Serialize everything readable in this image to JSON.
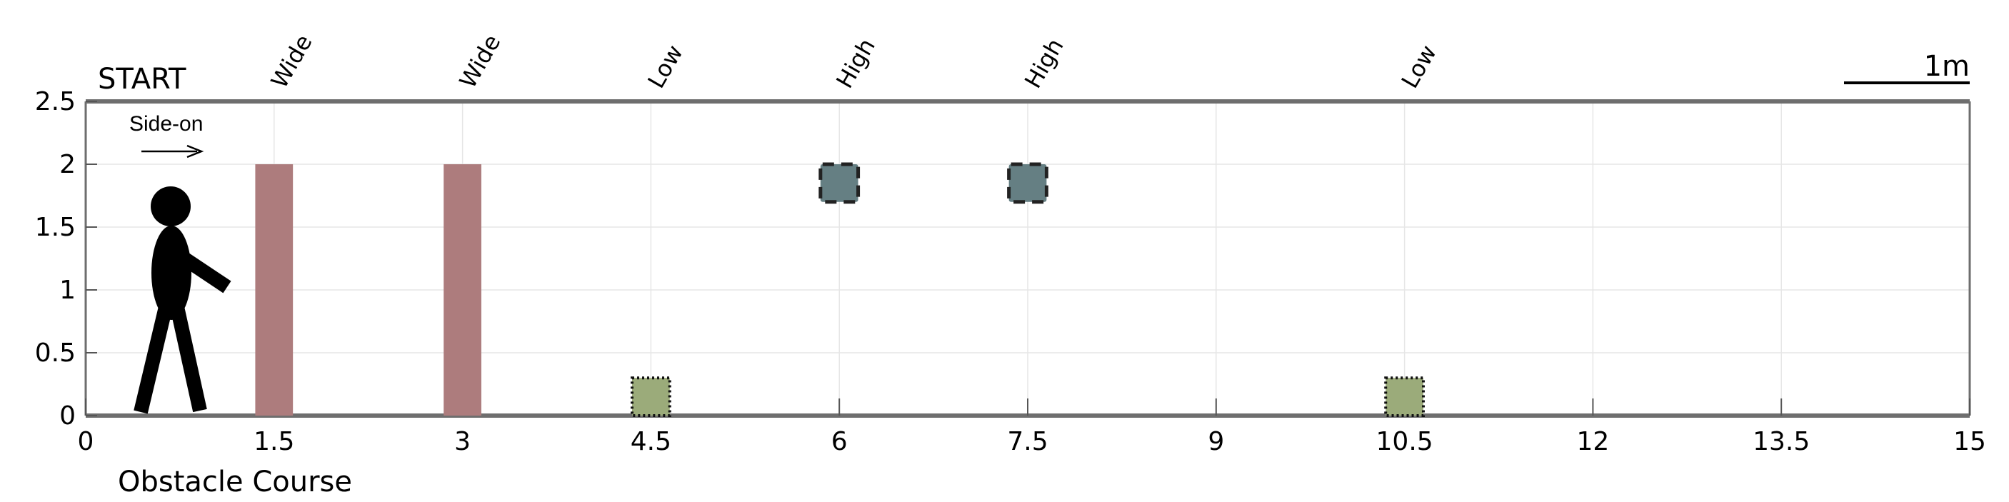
{
  "chart_data": {
    "type": "diagram",
    "title": "",
    "xlabel": "Obstacle Course",
    "start_label": "START",
    "scale_label": "1m",
    "direction_label": "Side-on",
    "xlim": [
      0,
      15
    ],
    "ylim": [
      0,
      2.5
    ],
    "x_ticks": [
      0,
      1.5,
      3,
      4.5,
      6,
      7.5,
      9,
      10.5,
      12,
      13.5,
      15
    ],
    "x_tick_labels": [
      "0",
      "1.5",
      "3",
      "4.5",
      "6",
      "7.5",
      "9",
      "10.5",
      "12",
      "13.5",
      "15"
    ],
    "y_ticks": [
      0,
      0.5,
      1,
      1.5,
      2,
      2.5
    ],
    "y_tick_labels": [
      "0",
      "0.5",
      "1",
      "1.5",
      "2",
      "2.5"
    ],
    "grid": true,
    "obstacles": [
      {
        "label": "Wide",
        "kind": "wide",
        "x": 1.5,
        "x0": 1.35,
        "x1": 1.65,
        "y0": 0,
        "y1": 2.0
      },
      {
        "label": "Wide",
        "kind": "wide",
        "x": 3.0,
        "x0": 2.85,
        "x1": 3.15,
        "y0": 0,
        "y1": 2.0
      },
      {
        "label": "Low",
        "kind": "low",
        "x": 4.5,
        "x0": 4.35,
        "x1": 4.65,
        "y0": 0,
        "y1": 0.3
      },
      {
        "label": "High",
        "kind": "high",
        "x": 6.0,
        "x0": 5.85,
        "x1": 6.15,
        "y0": 1.7,
        "y1": 2.0
      },
      {
        "label": "High",
        "kind": "high",
        "x": 7.5,
        "x0": 7.35,
        "x1": 7.65,
        "y0": 1.7,
        "y1": 2.0
      },
      {
        "label": "Low",
        "kind": "low",
        "x": 10.5,
        "x0": 10.35,
        "x1": 10.65,
        "y0": 0,
        "y1": 0.3
      }
    ],
    "colors": {
      "wide": "#ad7c7d",
      "low": "#9bab7a",
      "high": "#657f83",
      "axis": "#6e6e6e",
      "grid": "#e6e6e6",
      "figure": "#000000"
    }
  }
}
